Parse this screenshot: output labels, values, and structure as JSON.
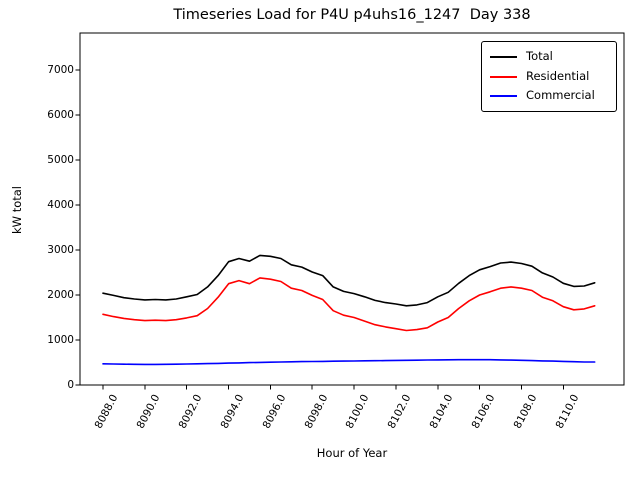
{
  "figure": {
    "title": "Timeseries Load for P4U p4uhs16_1247  Day 338",
    "xlabel": "Hour of Year",
    "ylabel": "kW total",
    "background_color": "#ffffff",
    "axes_edge_color": "#000000"
  },
  "chart_data": {
    "type": "line",
    "title": "Timeseries Load for P4U p4uhs16_1247  Day 338",
    "xlabel": "Hour of Year",
    "ylabel": "kW total",
    "xlim": [
      8086.9,
      8112.9
    ],
    "ylim": [
      0,
      7820
    ],
    "grid": false,
    "legend_position": "upper right",
    "x_tick_labels": [
      "8088.0",
      "8090.0",
      "8092.0",
      "8094.0",
      "8096.0",
      "8098.0",
      "8100.0",
      "8102.0",
      "8104.0",
      "8106.0",
      "8108.0",
      "8110.0"
    ],
    "x_tick_values": [
      8088,
      8090,
      8092,
      8094,
      8096,
      8098,
      8100,
      8102,
      8104,
      8106,
      8108,
      8110
    ],
    "y_tick_labels": [
      "0",
      "1000",
      "2000",
      "3000",
      "4000",
      "5000",
      "6000",
      "7000"
    ],
    "y_tick_values": [
      0,
      1000,
      2000,
      3000,
      4000,
      5000,
      6000,
      7000
    ],
    "x": [
      8088.0,
      8088.5,
      8089.0,
      8089.5,
      8090.0,
      8090.5,
      8091.0,
      8091.5,
      8092.0,
      8092.5,
      8093.0,
      8093.5,
      8094.0,
      8094.5,
      8095.0,
      8095.5,
      8096.0,
      8096.5,
      8097.0,
      8097.5,
      8098.0,
      8098.5,
      8099.0,
      8099.5,
      8100.0,
      8100.5,
      8101.0,
      8101.5,
      8102.0,
      8102.5,
      8103.0,
      8103.5,
      8104.0,
      8104.5,
      8105.0,
      8105.5,
      8106.0,
      8106.5,
      8107.0,
      8107.5,
      8108.0,
      8108.5,
      8109.0,
      8109.5,
      8110.0,
      8110.5,
      8111.0,
      8111.5
    ],
    "series": [
      {
        "name": "Total",
        "color": "#000000",
        "values": [
          2040,
          1990,
          1940,
          1910,
          1890,
          1900,
          1890,
          1910,
          1960,
          2010,
          2180,
          2430,
          2740,
          2810,
          2750,
          2880,
          2860,
          2810,
          2670,
          2620,
          2510,
          2430,
          2180,
          2080,
          2030,
          1960,
          1880,
          1830,
          1800,
          1760,
          1780,
          1830,
          1960,
          2060,
          2260,
          2430,
          2560,
          2630,
          2710,
          2730,
          2700,
          2640,
          2490,
          2400,
          2260,
          2190,
          2200,
          2270
        ]
      },
      {
        "name": "Residential",
        "color": "#ff0000",
        "values": [
          1570,
          1520,
          1480,
          1450,
          1430,
          1440,
          1430,
          1450,
          1490,
          1540,
          1700,
          1950,
          2250,
          2320,
          2250,
          2380,
          2350,
          2300,
          2150,
          2100,
          1990,
          1900,
          1650,
          1550,
          1500,
          1420,
          1340,
          1290,
          1250,
          1210,
          1230,
          1270,
          1400,
          1500,
          1700,
          1870,
          2000,
          2070,
          2150,
          2180,
          2150,
          2100,
          1950,
          1870,
          1740,
          1670,
          1690,
          1760
        ]
      },
      {
        "name": "Commercial",
        "color": "#0000ff",
        "values": [
          470,
          466,
          462,
          460,
          458,
          458,
          460,
          462,
          466,
          470,
          475,
          480,
          486,
          492,
          497,
          502,
          507,
          511,
          515,
          519,
          522,
          525,
          528,
          531,
          534,
          537,
          540,
          543,
          546,
          549,
          552,
          555,
          557,
          559,
          561,
          562,
          562,
          561,
          558,
          554,
          549,
          543,
          536,
          530,
          524,
          518,
          512,
          510
        ]
      }
    ]
  }
}
